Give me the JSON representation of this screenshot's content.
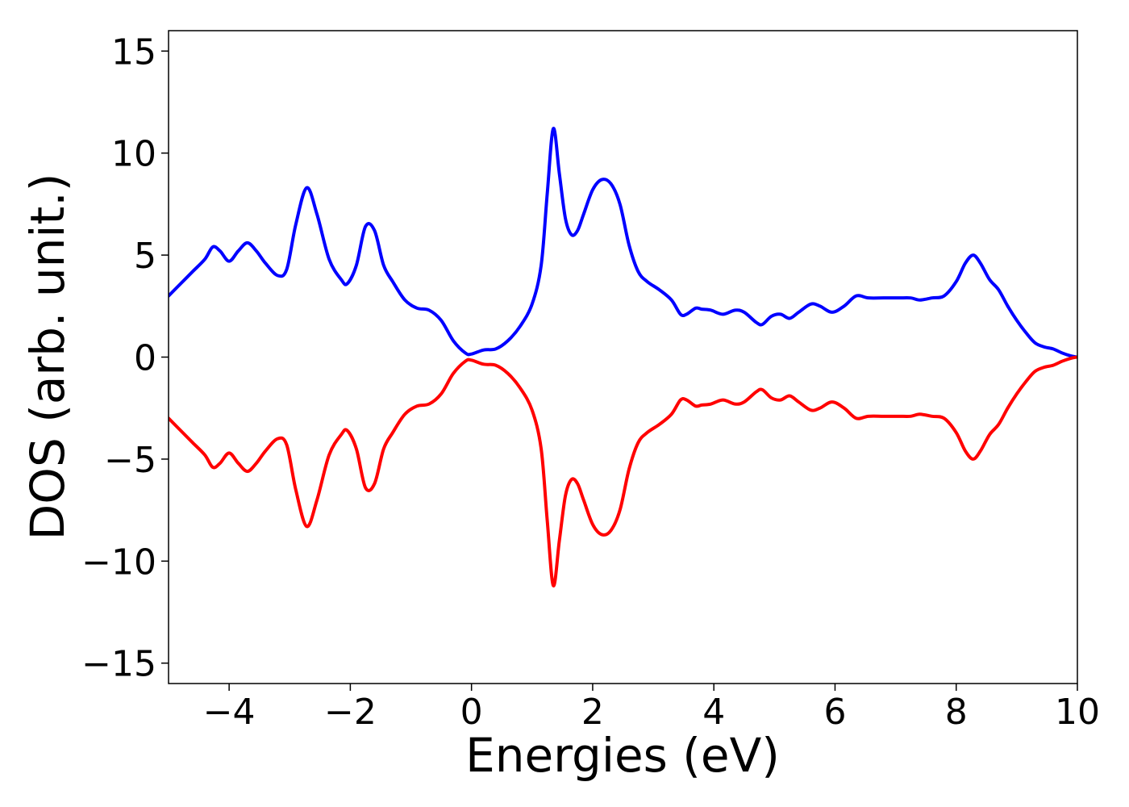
{
  "chart_data": {
    "type": "line",
    "title": "",
    "xlabel": "Energies (eV)",
    "ylabel": "DOS (arb. unit.)",
    "xlim": [
      -5,
      10
    ],
    "ylim": [
      -16,
      16
    ],
    "xticks": [
      -4,
      -2,
      0,
      2,
      4,
      6,
      8,
      10
    ],
    "xtick_labels": [
      "−4",
      "−2",
      "0",
      "2",
      "4",
      "6",
      "8",
      "10"
    ],
    "yticks": [
      15,
      10,
      5,
      0,
      -5,
      -10,
      -15
    ],
    "ytick_labels": [
      "15",
      "10",
      "5",
      "0",
      "−5",
      "−10",
      "−15"
    ],
    "grid": false,
    "legend": false,
    "series": [
      {
        "color": "#0000ff",
        "x": [
          -5.0,
          -4.8,
          -4.6,
          -4.4,
          -4.27,
          -4.15,
          -4.0,
          -3.85,
          -3.7,
          -3.55,
          -3.4,
          -3.2,
          -3.05,
          -2.9,
          -2.72,
          -2.55,
          -2.35,
          -2.15,
          -2.05,
          -1.9,
          -1.75,
          -1.6,
          -1.45,
          -1.3,
          -1.1,
          -0.9,
          -0.7,
          -0.5,
          -0.3,
          -0.1,
          0.0,
          0.2,
          0.4,
          0.6,
          0.8,
          1.0,
          1.15,
          1.25,
          1.35,
          1.45,
          1.55,
          1.65,
          1.75,
          1.85,
          2.0,
          2.15,
          2.3,
          2.45,
          2.6,
          2.75,
          2.9,
          3.1,
          3.3,
          3.45,
          3.55,
          3.7,
          3.8,
          3.95,
          4.15,
          4.35,
          4.5,
          4.7,
          4.8,
          4.95,
          5.1,
          5.25,
          5.4,
          5.6,
          5.75,
          5.95,
          6.15,
          6.35,
          6.55,
          6.8,
          7.05,
          7.25,
          7.4,
          7.6,
          7.8,
          8.0,
          8.15,
          8.28,
          8.4,
          8.55,
          8.7,
          8.85,
          9.0,
          9.15,
          9.3,
          9.45,
          9.6,
          9.75,
          9.9,
          10.0
        ],
        "y": [
          3.0,
          3.6,
          4.2,
          4.8,
          5.4,
          5.2,
          4.7,
          5.2,
          5.6,
          5.2,
          4.6,
          4.0,
          4.3,
          6.5,
          8.3,
          7.0,
          4.8,
          3.8,
          3.6,
          4.5,
          6.4,
          6.2,
          4.5,
          3.7,
          2.8,
          2.4,
          2.3,
          1.8,
          0.8,
          0.2,
          0.15,
          0.35,
          0.4,
          0.8,
          1.5,
          2.6,
          4.5,
          8.0,
          11.2,
          9.0,
          6.8,
          6.0,
          6.2,
          7.0,
          8.2,
          8.7,
          8.5,
          7.5,
          5.5,
          4.2,
          3.7,
          3.3,
          2.8,
          2.1,
          2.1,
          2.4,
          2.35,
          2.3,
          2.1,
          2.3,
          2.2,
          1.7,
          1.6,
          2.0,
          2.1,
          1.9,
          2.2,
          2.6,
          2.5,
          2.2,
          2.5,
          3.0,
          2.9,
          2.9,
          2.9,
          2.9,
          2.8,
          2.9,
          3.0,
          3.7,
          4.6,
          5.0,
          4.6,
          3.8,
          3.3,
          2.5,
          1.8,
          1.2,
          0.7,
          0.5,
          0.4,
          0.2,
          0.05,
          0.0
        ]
      },
      {
        "color": "#ff0000",
        "x": [
          -5.0,
          -4.8,
          -4.6,
          -4.4,
          -4.27,
          -4.15,
          -4.0,
          -3.85,
          -3.7,
          -3.55,
          -3.4,
          -3.2,
          -3.05,
          -2.9,
          -2.72,
          -2.55,
          -2.35,
          -2.15,
          -2.05,
          -1.9,
          -1.75,
          -1.6,
          -1.45,
          -1.3,
          -1.1,
          -0.9,
          -0.7,
          -0.5,
          -0.3,
          -0.1,
          0.0,
          0.2,
          0.4,
          0.6,
          0.8,
          1.0,
          1.15,
          1.25,
          1.35,
          1.45,
          1.55,
          1.65,
          1.75,
          1.85,
          2.0,
          2.15,
          2.3,
          2.45,
          2.6,
          2.75,
          2.9,
          3.1,
          3.3,
          3.45,
          3.55,
          3.7,
          3.8,
          3.95,
          4.15,
          4.35,
          4.5,
          4.7,
          4.8,
          4.95,
          5.1,
          5.25,
          5.4,
          5.6,
          5.75,
          5.95,
          6.15,
          6.35,
          6.55,
          6.8,
          7.05,
          7.25,
          7.4,
          7.6,
          7.8,
          8.0,
          8.15,
          8.28,
          8.4,
          8.55,
          8.7,
          8.85,
          9.0,
          9.15,
          9.3,
          9.45,
          9.6,
          9.75,
          9.9,
          10.0
        ],
        "y": [
          -3.0,
          -3.6,
          -4.2,
          -4.8,
          -5.4,
          -5.2,
          -4.7,
          -5.2,
          -5.6,
          -5.2,
          -4.6,
          -4.0,
          -4.3,
          -6.5,
          -8.3,
          -7.0,
          -4.8,
          -3.8,
          -3.6,
          -4.5,
          -6.4,
          -6.2,
          -4.5,
          -3.7,
          -2.8,
          -2.4,
          -2.3,
          -1.8,
          -0.8,
          -0.2,
          -0.15,
          -0.35,
          -0.4,
          -0.8,
          -1.5,
          -2.6,
          -4.5,
          -8.0,
          -11.2,
          -9.0,
          -6.8,
          -6.0,
          -6.2,
          -7.0,
          -8.2,
          -8.7,
          -8.5,
          -7.5,
          -5.5,
          -4.2,
          -3.7,
          -3.3,
          -2.8,
          -2.1,
          -2.1,
          -2.4,
          -2.35,
          -2.3,
          -2.1,
          -2.3,
          -2.2,
          -1.7,
          -1.6,
          -2.0,
          -2.1,
          -1.9,
          -2.2,
          -2.6,
          -2.5,
          -2.2,
          -2.5,
          -3.0,
          -2.9,
          -2.9,
          -2.9,
          -2.9,
          -2.8,
          -2.9,
          -3.0,
          -3.7,
          -4.6,
          -5.0,
          -4.6,
          -3.8,
          -3.3,
          -2.5,
          -1.8,
          -1.2,
          -0.7,
          -0.5,
          -0.4,
          -0.2,
          -0.05,
          0.0
        ]
      }
    ]
  }
}
